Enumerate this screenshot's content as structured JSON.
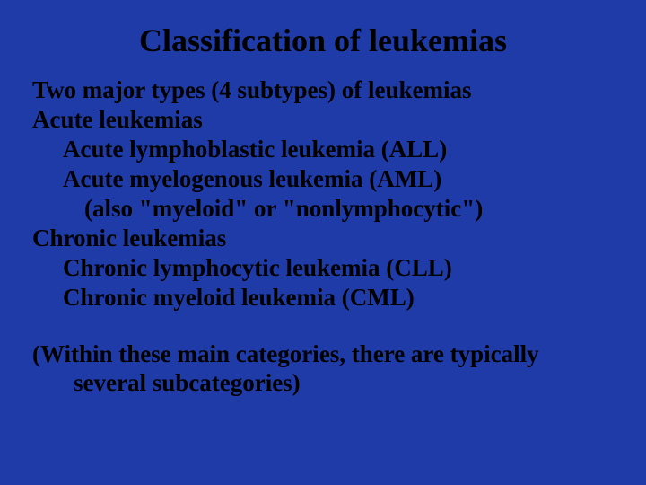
{
  "slide": {
    "background_color": "#1f3ba8",
    "text_color": "#000000",
    "font_family": "Times New Roman",
    "title": {
      "text": "Classification of leukemias",
      "fontsize": 36,
      "weight": "bold",
      "align": "center"
    },
    "body": {
      "fontsize": 27,
      "weight": "bold",
      "lines": [
        {
          "text": "Two major types (4 subtypes) of leukemias",
          "indent": 0
        },
        {
          "text": "Acute leukemias",
          "indent": 0
        },
        {
          "text": "Acute lymphoblastic leukemia (ALL)",
          "indent": 1
        },
        {
          "text": "Acute myelogenous leukemia (AML)",
          "indent": 1
        },
        {
          "text": "(also \"myeloid\" or \"nonlymphocytic\")",
          "indent": 2
        },
        {
          "text": "Chronic leukemias",
          "indent": 0
        },
        {
          "text": "Chronic lymphocytic leukemia  (CLL)",
          "indent": 1
        },
        {
          "text": "Chronic myeloid leukemia (CML)",
          "indent": 1
        }
      ]
    },
    "footer": {
      "fontsize": 27,
      "weight": "bold",
      "line1": "(Within these main categories, there are typically",
      "line2": "several subcategories)"
    }
  }
}
